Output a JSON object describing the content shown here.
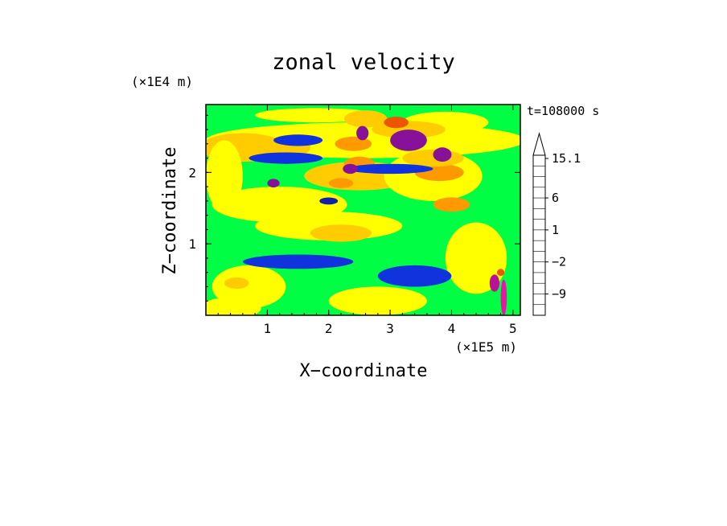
{
  "chart_data": {
    "type": "heatmap",
    "title": "zonal velocity",
    "xlabel": "X−coordinate",
    "ylabel": "Z−coordinate",
    "x_unit": "(×1E5 m)",
    "y_unit": "(×1E4 m)",
    "time_label": "t=108000 s",
    "xlim": [
      0,
      5.12
    ],
    "ylim": [
      0,
      2.95
    ],
    "x_ticks": [
      {
        "value": 1,
        "label": "1"
      },
      {
        "value": 2,
        "label": "2"
      },
      {
        "value": 3,
        "label": "3"
      },
      {
        "value": 4,
        "label": "4"
      },
      {
        "value": 5,
        "label": "5"
      }
    ],
    "y_ticks": [
      {
        "value": 1,
        "label": "1"
      },
      {
        "value": 2,
        "label": "2"
      }
    ],
    "colorbar": {
      "levels": [
        -15,
        -12,
        -9,
        -6,
        -4,
        -2,
        -1,
        0,
        1,
        2,
        4,
        6,
        9,
        12,
        15.1
      ],
      "colors": [
        "#ee11aa",
        "#bb1199",
        "#881199",
        "#1122aa",
        "#1133dd",
        "#22ccee",
        "#00ff44",
        "#aaff22",
        "#ffff00",
        "#ffcc00",
        "#ff9900",
        "#ee5500",
        "#ee2222",
        "#ee6666",
        "#ffbbbb"
      ],
      "tick_labels": [
        {
          "value": 15.1,
          "label": "15.1"
        },
        {
          "value": 6,
          "label": "6"
        },
        {
          "value": 1,
          "label": "1"
        },
        {
          "value": -2,
          "label": "−2"
        },
        {
          "value": -9,
          "label": "−9"
        }
      ]
    },
    "background_value": -0.5,
    "features": [
      {
        "cx": 2.6,
        "cz": 2.45,
        "rx": 2.6,
        "rz": 0.25,
        "value": 1.5
      },
      {
        "cx": 0.6,
        "cz": 2.35,
        "rx": 0.7,
        "rz": 0.2,
        "value": 3
      },
      {
        "cx": 1.3,
        "cz": 2.35,
        "rx": 0.4,
        "rz": 0.15,
        "value": 2.5
      },
      {
        "cx": 2.4,
        "cz": 2.55,
        "rx": 0.4,
        "rz": 0.08,
        "value": 1.5
      },
      {
        "cx": 3.9,
        "cz": 2.7,
        "rx": 0.7,
        "rz": 0.15,
        "value": 1.5
      },
      {
        "cx": 1.8,
        "cz": 2.8,
        "rx": 1.0,
        "rz": 0.1,
        "value": 1.5
      },
      {
        "cx": 2.6,
        "cz": 2.75,
        "rx": 0.35,
        "rz": 0.12,
        "value": 2.5
      },
      {
        "cx": 0.3,
        "cz": 1.95,
        "rx": 0.3,
        "rz": 0.5,
        "value": 1.5
      },
      {
        "cx": 1.2,
        "cz": 1.55,
        "rx": 1.1,
        "rz": 0.25,
        "value": 1.5
      },
      {
        "cx": 2.5,
        "cz": 1.95,
        "rx": 0.9,
        "rz": 0.2,
        "value": 2.5
      },
      {
        "cx": 2.0,
        "cz": 1.25,
        "rx": 1.2,
        "rz": 0.2,
        "value": 1.5
      },
      {
        "cx": 2.2,
        "cz": 1.15,
        "rx": 0.5,
        "rz": 0.12,
        "value": 2.5
      },
      {
        "cx": 3.7,
        "cz": 1.95,
        "rx": 0.8,
        "rz": 0.35,
        "value": 1.5
      },
      {
        "cx": 3.8,
        "cz": 2.0,
        "rx": 0.4,
        "rz": 0.12,
        "value": 5
      },
      {
        "cx": 4.0,
        "cz": 1.55,
        "rx": 0.3,
        "rz": 0.1,
        "value": 5
      },
      {
        "cx": 3.7,
        "cz": 2.2,
        "rx": 0.5,
        "rz": 0.12,
        "value": 2.5
      },
      {
        "cx": 3.3,
        "cz": 2.6,
        "rx": 0.6,
        "rz": 0.12,
        "value": 2.5
      },
      {
        "cx": 2.4,
        "cz": 2.4,
        "rx": 0.3,
        "rz": 0.1,
        "value": 5
      },
      {
        "cx": 2.5,
        "cz": 2.12,
        "rx": 0.25,
        "rz": 0.1,
        "value": 5
      },
      {
        "cx": 3.1,
        "cz": 2.7,
        "rx": 0.2,
        "rz": 0.08,
        "value": 7
      },
      {
        "cx": 2.2,
        "cz": 1.85,
        "rx": 0.2,
        "rz": 0.07,
        "value": 5
      },
      {
        "cx": 0.7,
        "cz": 0.4,
        "rx": 0.6,
        "rz": 0.3,
        "value": 1.5
      },
      {
        "cx": 0.5,
        "cz": 0.45,
        "rx": 0.2,
        "rz": 0.08,
        "value": 3
      },
      {
        "cx": 0.4,
        "cz": 0.1,
        "rx": 0.5,
        "rz": 0.15,
        "value": 1.5
      },
      {
        "cx": 2.8,
        "cz": 0.2,
        "rx": 0.8,
        "rz": 0.2,
        "value": 1.5
      },
      {
        "cx": 4.4,
        "cz": 0.8,
        "rx": 0.5,
        "rz": 0.5,
        "value": 1.5
      },
      {
        "cx": 1.3,
        "cz": 2.2,
        "rx": 0.6,
        "rz": 0.08,
        "value": -2.5
      },
      {
        "cx": 3.0,
        "cz": 2.05,
        "rx": 0.7,
        "rz": 0.07,
        "value": -2.5
      },
      {
        "cx": 1.5,
        "cz": 0.75,
        "rx": 0.9,
        "rz": 0.1,
        "value": -2.5
      },
      {
        "cx": 3.4,
        "cz": 0.55,
        "rx": 0.6,
        "rz": 0.15,
        "value": -2.5
      },
      {
        "cx": 1.5,
        "cz": 2.45,
        "rx": 0.4,
        "rz": 0.08,
        "value": -2.5
      },
      {
        "cx": 3.3,
        "cz": 2.45,
        "rx": 0.3,
        "rz": 0.15,
        "value": -9
      },
      {
        "cx": 2.55,
        "cz": 2.55,
        "rx": 0.1,
        "rz": 0.1,
        "value": -7
      },
      {
        "cx": 2.35,
        "cz": 2.05,
        "rx": 0.12,
        "rz": 0.07,
        "value": -8
      },
      {
        "cx": 3.85,
        "cz": 2.25,
        "rx": 0.15,
        "rz": 0.1,
        "value": -8
      },
      {
        "cx": 1.1,
        "cz": 1.85,
        "rx": 0.1,
        "rz": 0.06,
        "value": -8
      },
      {
        "cx": 2.0,
        "cz": 1.6,
        "rx": 0.15,
        "rz": 0.05,
        "value": -5
      },
      {
        "cx": 4.7,
        "cz": 0.45,
        "rx": 0.08,
        "rz": 0.12,
        "value": -11
      },
      {
        "cx": 4.85,
        "cz": 0.25,
        "rx": 0.05,
        "rz": 0.25,
        "value": -13
      },
      {
        "cx": 4.8,
        "cz": 0.6,
        "rx": 0.06,
        "rz": 0.05,
        "value": 8
      }
    ]
  }
}
